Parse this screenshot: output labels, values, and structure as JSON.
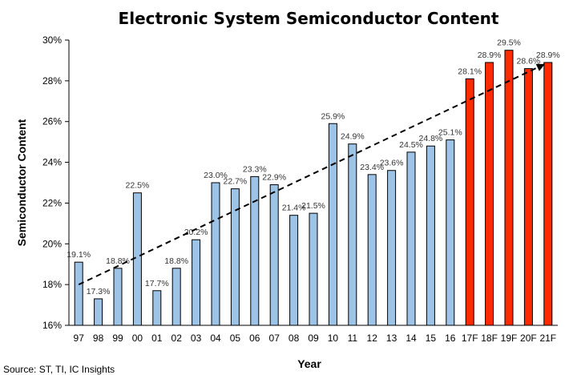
{
  "chart_data": {
    "type": "bar",
    "title": "Electronic System Semiconductor Content",
    "xlabel": "Year",
    "ylabel": "Semiconductor Content",
    "ylim": [
      16,
      30
    ],
    "yticks": [
      "16%",
      "18%",
      "20%",
      "22%",
      "24%",
      "26%",
      "28%",
      "30%"
    ],
    "categories": [
      "97",
      "98",
      "99",
      "00",
      "01",
      "02",
      "03",
      "04",
      "05",
      "06",
      "07",
      "08",
      "09",
      "10",
      "11",
      "12",
      "13",
      "14",
      "15",
      "16",
      "17F",
      "18F",
      "19F",
      "20F",
      "21F"
    ],
    "values": [
      19.1,
      17.3,
      18.8,
      22.5,
      17.7,
      18.8,
      20.2,
      23.0,
      22.7,
      23.3,
      22.9,
      21.4,
      21.5,
      25.9,
      24.9,
      23.4,
      23.6,
      24.5,
      24.8,
      25.1,
      28.1,
      28.9,
      29.5,
      28.6,
      28.9
    ],
    "labels": [
      "19.1%",
      "17.3%",
      "18.8%",
      "22.5%",
      "17.7%",
      "18.8%",
      "20.2%",
      "23.0%",
      "22.7%",
      "23.3%",
      "22.9%",
      "21.4%",
      "21.5%",
      "25.9%",
      "24.9%",
      "23.4%",
      "23.6%",
      "24.5%",
      "24.8%",
      "25.1%",
      "28.1%",
      "28.9%",
      "29.5%",
      "28.6%",
      "28.9%"
    ],
    "forecast": [
      false,
      false,
      false,
      false,
      false,
      false,
      false,
      false,
      false,
      false,
      false,
      false,
      false,
      false,
      false,
      false,
      false,
      false,
      false,
      false,
      true,
      true,
      true,
      true,
      true
    ],
    "colors": {
      "actual": "#9dc3e6",
      "forecast": "#ff2a00",
      "outline": "#000000"
    },
    "trendline": {
      "style": "dashed-arrow",
      "start_value": 18.0,
      "end_value": 28.9
    },
    "grid": false,
    "legend": "none",
    "source": "Source: ST, TI, IC Insights"
  }
}
